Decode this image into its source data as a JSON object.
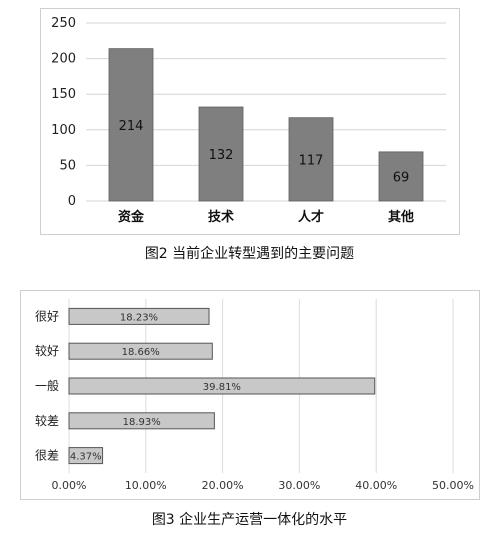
{
  "chart_data": [
    {
      "type": "bar",
      "title": "",
      "categories": [
        "资金",
        "技术",
        "人才",
        "其他"
      ],
      "values": [
        214,
        132,
        117,
        69
      ],
      "ylim": [
        0,
        250
      ],
      "yticks": [
        0,
        50,
        100,
        150,
        200,
        250
      ],
      "data_labels": [
        "214",
        "132",
        "117",
        "69"
      ],
      "caption": "图2 当前企业转型遇到的主要问题",
      "grid": true,
      "bar_color": "#7f7f7f"
    },
    {
      "type": "bar",
      "orientation": "horizontal",
      "title": "",
      "categories": [
        "很好",
        "较好",
        "一般",
        "较差",
        "很差"
      ],
      "values": [
        18.23,
        18.66,
        39.81,
        18.93,
        4.37
      ],
      "data_labels": [
        "18.23%",
        "18.66%",
        "39.81%",
        "18.93%",
        "4.37%"
      ],
      "xlim": [
        0,
        50
      ],
      "xticks": [
        "0.00%",
        "10.00%",
        "20.00%",
        "30.00%",
        "40.00%",
        "50.00%"
      ],
      "caption": "图3 企业生产运营一体化的水平",
      "grid": true,
      "bar_color": "#c8c8c8"
    }
  ]
}
